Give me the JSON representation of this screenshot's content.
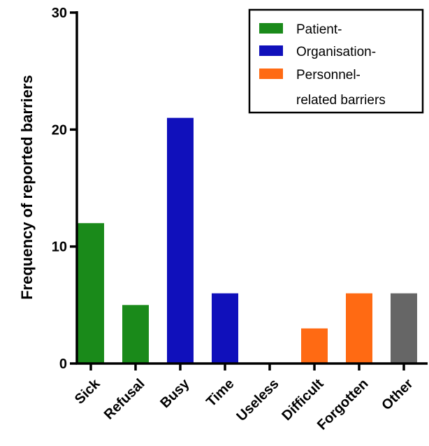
{
  "chart_data": {
    "type": "bar",
    "title": "",
    "xlabel": "",
    "ylabel": "Frequency of reported barriers",
    "ylim": [
      0,
      30
    ],
    "yticks": [
      0,
      10,
      20,
      30
    ],
    "categories": [
      "Sick",
      "Refusal",
      "Busy",
      "Time",
      "Useless",
      "Difficult",
      "Forgotten",
      "Other"
    ],
    "values": [
      12,
      5,
      21,
      6,
      0,
      3,
      6,
      6
    ],
    "bar_groups": [
      "patient",
      "patient",
      "organisation",
      "organisation",
      "personnel",
      "personnel",
      "personnel",
      "other"
    ],
    "colors": {
      "patient": "#1a8a1a",
      "organisation": "#1010bb",
      "personnel": "#ff6a13",
      "other": "#666666"
    },
    "legend": {
      "position": "top-right",
      "entries": [
        {
          "group": "patient",
          "label": "Patient-"
        },
        {
          "group": "organisation",
          "label": "Organisation-"
        },
        {
          "group": "personnel",
          "label": "Personnel-"
        },
        {
          "group": "",
          "label": "related barriers"
        }
      ]
    },
    "grid": false
  }
}
